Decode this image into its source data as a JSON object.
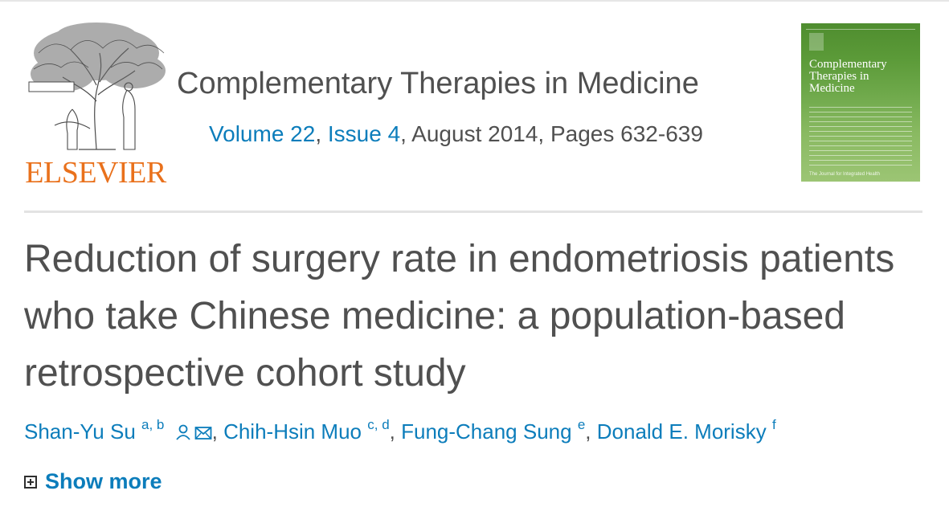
{
  "publisher": {
    "name": "ELSEVIER"
  },
  "journal": {
    "title": "Complementary Therapies in Medicine",
    "volume_link": "Volume 22",
    "issue_link": "Issue 4",
    "date_pages": ", August 2014, Pages 632-639",
    "issue_sep": ", "
  },
  "cover": {
    "title": "Complementary\nTherapies in\nMedicine",
    "footer": "The Journal for Integrated Health"
  },
  "article": {
    "title": "Reduction of surgery rate in endometriosis patients who take Chinese medicine: a population-based retrospective cohort study"
  },
  "authors": [
    {
      "name": "Shan-Yu Su",
      "affiliations": "a, b"
    },
    {
      "name": "Chih-Hsin Muo",
      "affiliations": "c, d"
    },
    {
      "name": "Fung-Chang Sung",
      "affiliations": "e"
    },
    {
      "name": "Donald E. Morisky",
      "affiliations": "f"
    }
  ],
  "author_separator": ", ",
  "show_more": {
    "label": "Show more"
  },
  "colors": {
    "link": "#0c7dbb",
    "text": "#505050",
    "brand_orange": "#e9711c",
    "cover_green": "#5b9a38"
  }
}
